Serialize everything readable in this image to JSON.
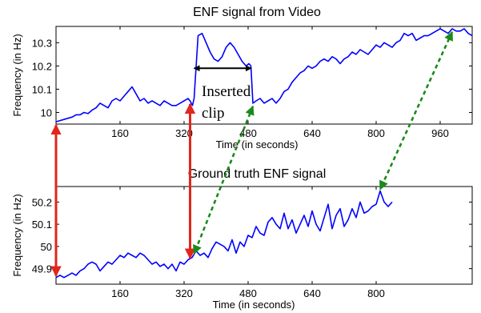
{
  "chart_data": [
    {
      "type": "line",
      "title": "ENF signal from Video",
      "xlabel": "Time (in seconds)",
      "ylabel": "Frequency (in Hz)",
      "xlim": [
        0,
        1040
      ],
      "ylim": [
        9.95,
        10.37
      ],
      "xticks": [
        160,
        320,
        480,
        640,
        800,
        960
      ],
      "yticks": [
        10,
        10.1,
        10.2,
        10.3
      ],
      "ytick_labels": [
        "10",
        "10.1",
        "10.2",
        "10.3"
      ],
      "grid": false,
      "annotation": [
        "Inserted",
        "clip"
      ],
      "inserted_clip_range": [
        341,
        492
      ],
      "series": [
        {
          "color": "#0000ff",
          "x": [
            0,
            10,
            20,
            30,
            40,
            50,
            60,
            70,
            80,
            90,
            100,
            110,
            120,
            130,
            140,
            150,
            160,
            170,
            180,
            190,
            200,
            210,
            220,
            230,
            240,
            250,
            260,
            270,
            280,
            290,
            300,
            310,
            320,
            330,
            335,
            341,
            345,
            355,
            365,
            375,
            385,
            395,
            405,
            415,
            425,
            435,
            445,
            455,
            465,
            475,
            482,
            487,
            492,
            500,
            510,
            520,
            530,
            540,
            550,
            560,
            570,
            580,
            590,
            600,
            610,
            620,
            630,
            640,
            650,
            660,
            670,
            680,
            690,
            700,
            710,
            720,
            730,
            740,
            750,
            760,
            770,
            780,
            790,
            800,
            810,
            820,
            830,
            840,
            850,
            860,
            870,
            880,
            890,
            900,
            910,
            920,
            930,
            940,
            950,
            960,
            970,
            980,
            990,
            1000,
            1010,
            1020,
            1030,
            1040
          ],
          "y": [
            9.96,
            9.965,
            9.97,
            9.975,
            9.98,
            9.99,
            9.99,
            10.0,
            9.995,
            10.01,
            10.02,
            10.04,
            10.03,
            10.02,
            10.05,
            10.06,
            10.05,
            10.07,
            10.09,
            10.11,
            10.08,
            10.05,
            10.06,
            10.04,
            10.05,
            10.04,
            10.03,
            10.05,
            10.04,
            10.03,
            10.03,
            10.04,
            10.05,
            10.06,
            10.05,
            10.03,
            10.06,
            10.33,
            10.34,
            10.3,
            10.26,
            10.23,
            10.22,
            10.24,
            10.28,
            10.3,
            10.28,
            10.25,
            10.22,
            10.2,
            10.21,
            10.2,
            10.04,
            10.05,
            10.06,
            10.04,
            10.05,
            10.06,
            10.04,
            10.06,
            10.09,
            10.1,
            10.13,
            10.15,
            10.17,
            10.18,
            10.2,
            10.19,
            10.2,
            10.22,
            10.23,
            10.22,
            10.24,
            10.23,
            10.21,
            10.23,
            10.24,
            10.26,
            10.25,
            10.27,
            10.26,
            10.25,
            10.27,
            10.29,
            10.28,
            10.3,
            10.29,
            10.28,
            10.3,
            10.31,
            10.34,
            10.33,
            10.34,
            10.31,
            10.32,
            10.33,
            10.33,
            10.34,
            10.35,
            10.36,
            10.35,
            10.34,
            10.36,
            10.35,
            10.35,
            10.36,
            10.34,
            10.33
          ]
        }
      ]
    },
    {
      "type": "line",
      "title": "Ground truth ENF signal",
      "xlabel": "Time (in seconds)",
      "ylabel": "Frequency (in Hz)",
      "xlim": [
        0,
        1040
      ],
      "ylim": [
        49.83,
        50.27
      ],
      "xticks": [
        160,
        320,
        480,
        640,
        800
      ],
      "yticks": [
        49.9,
        50,
        50.1,
        50.2
      ],
      "ytick_labels": [
        "49.9",
        "50",
        "50.1",
        "50.2"
      ],
      "grid": false,
      "series": [
        {
          "color": "#0000ff",
          "x": [
            0,
            10,
            20,
            30,
            40,
            50,
            60,
            70,
            80,
            90,
            100,
            110,
            120,
            130,
            140,
            150,
            160,
            170,
            180,
            190,
            200,
            210,
            220,
            230,
            240,
            250,
            260,
            270,
            280,
            290,
            300,
            310,
            320,
            330,
            340,
            350,
            360,
            370,
            380,
            390,
            400,
            410,
            420,
            430,
            440,
            450,
            460,
            470,
            480,
            490,
            500,
            510,
            520,
            530,
            540,
            550,
            560,
            570,
            580,
            590,
            600,
            610,
            620,
            630,
            640,
            650,
            660,
            670,
            680,
            690,
            700,
            710,
            720,
            730,
            740,
            750,
            760,
            770,
            780,
            790,
            800,
            810,
            820,
            830,
            840
          ],
          "y": [
            49.86,
            49.87,
            49.86,
            49.87,
            49.88,
            49.87,
            49.89,
            49.9,
            49.92,
            49.93,
            49.92,
            49.89,
            49.91,
            49.93,
            49.92,
            49.94,
            49.96,
            49.95,
            49.97,
            49.96,
            49.95,
            49.97,
            49.96,
            49.94,
            49.92,
            49.93,
            49.91,
            49.92,
            49.9,
            49.92,
            49.89,
            49.93,
            49.92,
            49.94,
            49.95,
            49.98,
            49.96,
            49.97,
            49.95,
            49.99,
            50.02,
            50.01,
            50.0,
            49.98,
            50.03,
            49.97,
            50.02,
            50.0,
            50.05,
            50.04,
            50.09,
            50.06,
            50.05,
            50.11,
            50.13,
            50.1,
            50.08,
            50.15,
            50.08,
            50.12,
            50.06,
            50.1,
            50.14,
            50.09,
            50.16,
            50.1,
            50.07,
            50.13,
            50.19,
            50.08,
            50.14,
            50.17,
            50.09,
            50.12,
            50.17,
            50.13,
            50.2,
            50.15,
            50.16,
            50.18,
            50.19,
            50.25,
            50.2,
            50.18,
            50.2
          ]
        }
      ]
    }
  ],
  "arrows": {
    "red_color": "#e1261c",
    "green_color": "#1a8a1a",
    "red": [
      {
        "top": {
          "plot": 0,
          "x": 0,
          "y": 9.96
        },
        "bottom": {
          "plot": 1,
          "x": 0,
          "y": 49.86
        }
      },
      {
        "top": {
          "plot": 0,
          "x": 335,
          "y": 10.05
        },
        "bottom": {
          "plot": 1,
          "x": 335,
          "y": 49.94
        }
      }
    ],
    "green": [
      {
        "top": {
          "plot": 0,
          "x": 492,
          "y": 10.04
        },
        "bottom": {
          "plot": 1,
          "x": 345,
          "y": 49.96
        }
      },
      {
        "top": {
          "plot": 0,
          "x": 990,
          "y": 10.36
        },
        "bottom": {
          "plot": 1,
          "x": 810,
          "y": 50.25
        }
      }
    ]
  }
}
